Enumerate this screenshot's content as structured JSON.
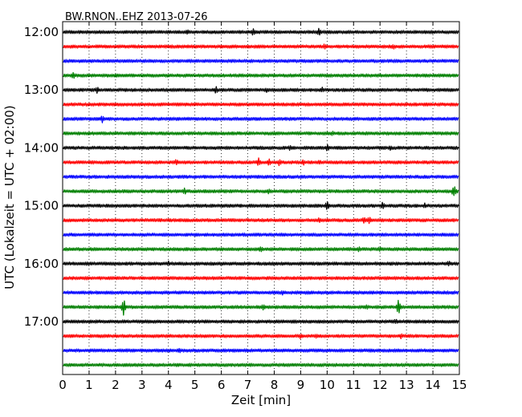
{
  "chart_data": {
    "type": "line",
    "title": "BW.RNON..EHZ 2013-07-26",
    "xlabel": "Zeit  [min]",
    "ylabel": "UTC (Lokalzeit = UTC + 02:00)",
    "xlim": [
      0,
      15
    ],
    "xticks": [
      0,
      1,
      2,
      3,
      4,
      5,
      6,
      7,
      8,
      9,
      10,
      11,
      12,
      13,
      14,
      15
    ],
    "xtick_labels": [
      "0",
      "1",
      "2",
      "3",
      "4",
      "5",
      "6",
      "7",
      "8",
      "9",
      "10",
      "11",
      "12",
      "13",
      "14",
      "15"
    ],
    "ytick_labels": [
      "12:00",
      "13:00",
      "14:00",
      "15:00",
      "16:00",
      "17:00"
    ],
    "grid": "vertical dotted",
    "trace_interval_minutes": 15,
    "colors": [
      "#000000",
      "#ff0000",
      "#0000ff",
      "#008000"
    ],
    "series": [
      {
        "start": "12:00",
        "color": "#000000",
        "events": [
          {
            "x": 4.7,
            "amp": 4
          },
          {
            "x": 7.2,
            "amp": 5
          },
          {
            "x": 9.7,
            "amp": 6
          }
        ]
      },
      {
        "start": "12:15",
        "color": "#ff0000",
        "events": [
          {
            "x": 9.9,
            "amp": 4
          },
          {
            "x": 12.5,
            "amp": 4
          }
        ]
      },
      {
        "start": "12:30",
        "color": "#0000ff",
        "events": []
      },
      {
        "start": "12:45",
        "color": "#008000",
        "events": [
          {
            "x": 0.4,
            "amp": 5
          }
        ]
      },
      {
        "start": "13:00",
        "color": "#000000",
        "events": [
          {
            "x": 1.3,
            "amp": 5
          },
          {
            "x": 5.8,
            "amp": 5
          },
          {
            "x": 7.7,
            "amp": 4
          },
          {
            "x": 9.8,
            "amp": 4
          }
        ]
      },
      {
        "start": "13:15",
        "color": "#ff0000",
        "events": []
      },
      {
        "start": "13:30",
        "color": "#0000ff",
        "events": [
          {
            "x": 1.5,
            "amp": 5
          }
        ]
      },
      {
        "start": "13:45",
        "color": "#008000",
        "events": [
          {
            "x": 10.2,
            "amp": 4
          }
        ]
      },
      {
        "start": "14:00",
        "color": "#000000",
        "events": [
          {
            "x": 8.6,
            "amp": 4
          },
          {
            "x": 10.0,
            "amp": 5
          },
          {
            "x": 12.4,
            "amp": 4
          }
        ]
      },
      {
        "start": "14:15",
        "color": "#ff0000",
        "events": [
          {
            "x": 4.3,
            "amp": 5
          },
          {
            "x": 7.4,
            "amp": 7
          },
          {
            "x": 7.8,
            "amp": 6
          },
          {
            "x": 8.2,
            "amp": 5
          },
          {
            "x": 9.1,
            "amp": 5
          },
          {
            "x": 9.7,
            "amp": 4
          }
        ]
      },
      {
        "start": "14:30",
        "color": "#0000ff",
        "events": []
      },
      {
        "start": "14:45",
        "color": "#008000",
        "events": [
          {
            "x": 4.6,
            "amp": 5
          },
          {
            "x": 7.8,
            "amp": 4
          },
          {
            "x": 14.8,
            "amp": 9
          }
        ]
      },
      {
        "start": "15:00",
        "color": "#000000",
        "events": [
          {
            "x": 10.0,
            "amp": 7
          },
          {
            "x": 12.1,
            "amp": 5
          },
          {
            "x": 13.7,
            "amp": 4
          }
        ]
      },
      {
        "start": "15:15",
        "color": "#ff0000",
        "events": [
          {
            "x": 9.7,
            "amp": 4
          },
          {
            "x": 11.4,
            "amp": 6
          },
          {
            "x": 11.6,
            "amp": 5
          }
        ]
      },
      {
        "start": "15:30",
        "color": "#0000ff",
        "events": []
      },
      {
        "start": "15:45",
        "color": "#008000",
        "events": [
          {
            "x": 7.5,
            "amp": 5
          },
          {
            "x": 11.2,
            "amp": 4
          },
          {
            "x": 12.0,
            "amp": 4
          }
        ]
      },
      {
        "start": "16:00",
        "color": "#000000",
        "events": [
          {
            "x": 4.0,
            "amp": 4
          },
          {
            "x": 14.6,
            "amp": 4
          }
        ]
      },
      {
        "start": "16:15",
        "color": "#ff0000",
        "events": []
      },
      {
        "start": "16:30",
        "color": "#0000ff",
        "events": [
          {
            "x": 8.3,
            "amp": 4
          }
        ]
      },
      {
        "start": "16:45",
        "color": "#008000",
        "events": [
          {
            "x": 2.3,
            "amp": 11
          },
          {
            "x": 7.6,
            "amp": 5
          },
          {
            "x": 11.5,
            "amp": 4
          },
          {
            "x": 12.7,
            "amp": 11
          }
        ]
      },
      {
        "start": "17:00",
        "color": "#000000",
        "events": [
          {
            "x": 12.6,
            "amp": 4
          }
        ]
      },
      {
        "start": "17:15",
        "color": "#ff0000",
        "events": [
          {
            "x": 9.0,
            "amp": 4
          },
          {
            "x": 9.6,
            "amp": 4
          },
          {
            "x": 12.8,
            "amp": 4
          }
        ]
      },
      {
        "start": "17:30",
        "color": "#0000ff",
        "events": [
          {
            "x": 4.4,
            "amp": 4
          }
        ]
      },
      {
        "start": "17:45",
        "color": "#008000",
        "events": []
      }
    ]
  }
}
